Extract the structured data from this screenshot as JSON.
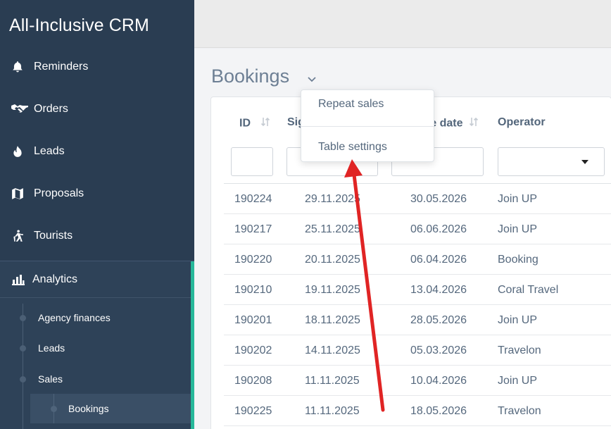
{
  "app": {
    "title": "All-Inclusive CRM"
  },
  "sidebar": {
    "items": [
      {
        "label": "Reminders",
        "icon": "bell-icon"
      },
      {
        "label": "Orders",
        "icon": "handshake-icon"
      },
      {
        "label": "Leads",
        "icon": "fire-icon"
      },
      {
        "label": "Proposals",
        "icon": "map-icon"
      },
      {
        "label": "Tourists",
        "icon": "hiker-icon"
      }
    ],
    "analytics": {
      "label": "Analytics",
      "icon": "bar-chart-icon",
      "children": [
        {
          "label": "Agency finances"
        },
        {
          "label": "Leads"
        },
        {
          "label": "Sales"
        },
        {
          "label": "Bookings",
          "active": true
        }
      ]
    }
  },
  "page": {
    "title": "Bookings"
  },
  "table": {
    "columns": [
      {
        "label": "ID"
      },
      {
        "label": "Sig"
      },
      {
        "label": "re date"
      },
      {
        "label": "Operator"
      }
    ],
    "rows": [
      {
        "id": "190224",
        "signed": "29.11.2025",
        "departure": "30.05.2026",
        "operator": "Join UP"
      },
      {
        "id": "190217",
        "signed": "25.11.2025",
        "departure": "06.06.2026",
        "operator": "Join UP"
      },
      {
        "id": "190220",
        "signed": "20.11.2025",
        "departure": "06.04.2026",
        "operator": "Booking"
      },
      {
        "id": "190210",
        "signed": "19.11.2025",
        "departure": "13.04.2026",
        "operator": "Coral Travel"
      },
      {
        "id": "190201",
        "signed": "18.11.2025",
        "departure": "28.05.2026",
        "operator": "Join UP"
      },
      {
        "id": "190202",
        "signed": "14.11.2025",
        "departure": "05.03.2026",
        "operator": "Travelon"
      },
      {
        "id": "190208",
        "signed": "11.11.2025",
        "departure": "10.04.2026",
        "operator": "Join UP"
      },
      {
        "id": "190225",
        "signed": "11.11.2025",
        "departure": "18.05.2026",
        "operator": "Travelon"
      }
    ]
  },
  "menu": {
    "items": [
      {
        "label": "Repeat sales"
      },
      {
        "label": "Table settings"
      }
    ]
  },
  "colors": {
    "sidebar": "#2a3d52",
    "accent": "#27b89a",
    "annotation_arrow": "#e02424"
  }
}
